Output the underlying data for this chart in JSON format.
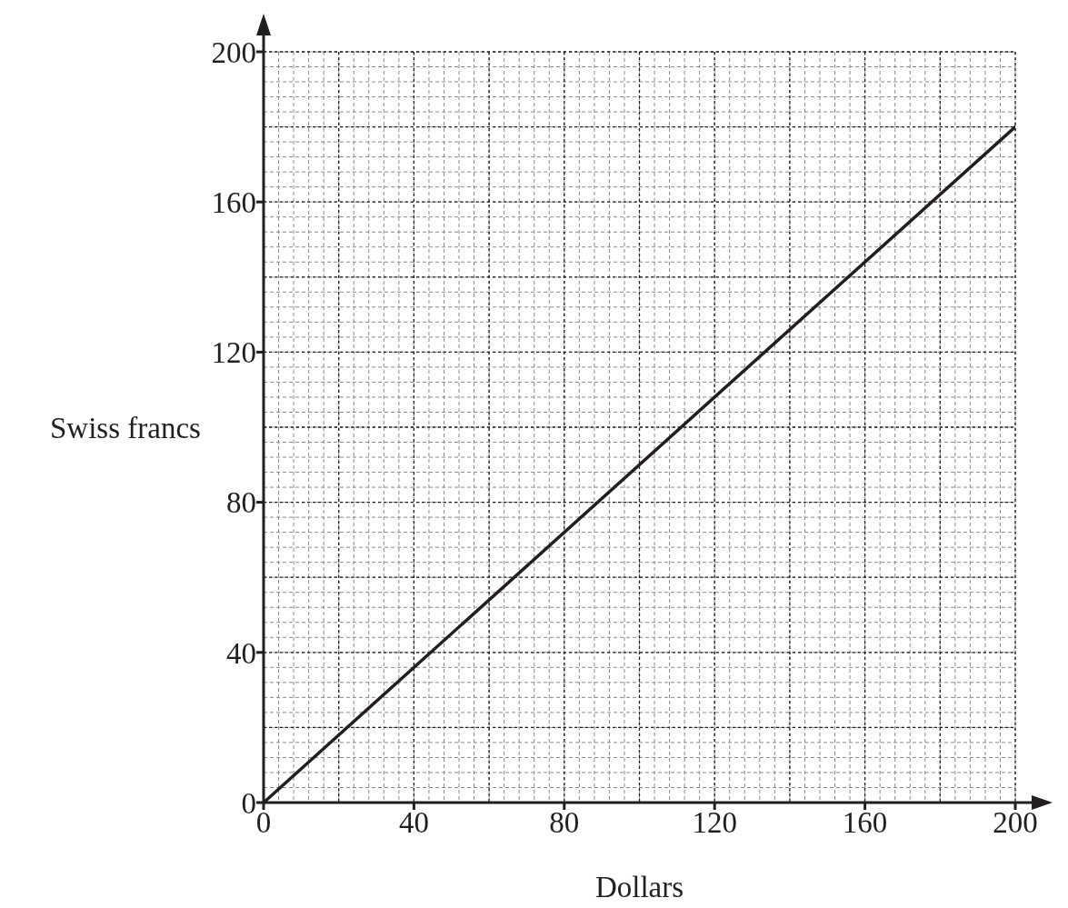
{
  "chart_data": {
    "type": "line",
    "xlabel": "Dollars",
    "ylabel": "Swiss francs",
    "x": [
      0,
      200
    ],
    "values": [
      0,
      180
    ],
    "color": "#231f20",
    "xlim": [
      0,
      200
    ],
    "ylim": [
      0,
      200
    ],
    "xticks": [
      0,
      40,
      80,
      120,
      160,
      200
    ],
    "yticks": [
      0,
      40,
      80,
      120,
      160,
      200
    ],
    "grid": true,
    "marker": "none",
    "line_style": "solid"
  }
}
